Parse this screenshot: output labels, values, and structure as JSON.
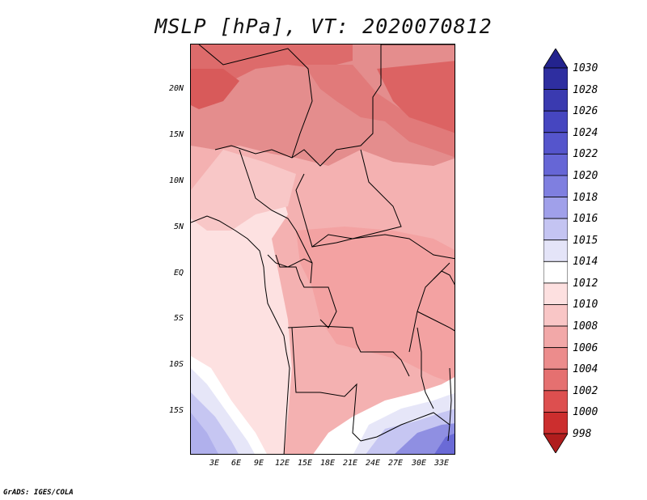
{
  "title": "MSLP [hPa], VT: 2020070812",
  "footer": "GrADS: IGES/COLA",
  "axes": {
    "lat_labels": [
      "20N",
      "15N",
      "10N",
      "5N",
      "EQ",
      "5S",
      "10S",
      "15S"
    ],
    "lon_labels": [
      "3E",
      "6E",
      "9E",
      "12E",
      "15E",
      "18E",
      "21E",
      "24E",
      "27E",
      "30E",
      "33E"
    ]
  },
  "colorbar": {
    "levels": [
      "1030",
      "1028",
      "1026",
      "1024",
      "1022",
      "1020",
      "1018",
      "1016",
      "1015",
      "1014",
      "1012",
      "1010",
      "1008",
      "1006",
      "1004",
      "1002",
      "1000",
      "998"
    ],
    "colors": [
      "#23238e",
      "#2e2ea0",
      "#3a3ab0",
      "#4646c0",
      "#5555cc",
      "#6666d6",
      "#7f7fe0",
      "#a0a0ea",
      "#c4c4f2",
      "#e4e4f8",
      "#ffffff",
      "#fde0e0",
      "#f9c6c6",
      "#f2a8a8",
      "#ec8c8c",
      "#e57070",
      "#dd4f4f",
      "#cc2e2e",
      "#b01d1d"
    ]
  }
}
